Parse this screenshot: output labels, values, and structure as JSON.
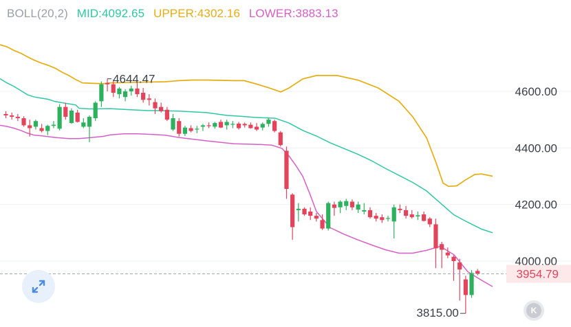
{
  "indicator": {
    "name": "BOLL(20,2)",
    "mid": "MID:4092.65",
    "upper": "UPPER:4302.16",
    "lower": "LOWER:3883.13"
  },
  "colors": {
    "name": "#9aa0a6",
    "mid": "#2dc8a3",
    "upper": "#e6ad12",
    "lower": "#d65fc6",
    "up": "#2db15e",
    "down": "#e2445c",
    "price_tag_bg": "#fde8ea",
    "price_tag_text": "#e2445c"
  },
  "expand_icon": "expand-arrows-icon",
  "k_button": {
    "label": "K"
  },
  "chart_data": {
    "type": "candlestick",
    "yticks": [
      "4600.00",
      "4400.00",
      "4200.00",
      "4000.00"
    ],
    "ylim": [
      3800,
      4780
    ],
    "last_price": "3954.79",
    "max_label": "4644.47",
    "min_label": "3815.00",
    "candles": [
      [
        4520,
        4530,
        4505,
        4515
      ],
      [
        4515,
        4525,
        4500,
        4510
      ],
      [
        4510,
        4520,
        4495,
        4505
      ],
      [
        4505,
        4512,
        4475,
        4480
      ],
      [
        4480,
        4500,
        4440,
        4470
      ],
      [
        4475,
        4500,
        4465,
        4495
      ],
      [
        4470,
        4485,
        4455,
        4460
      ],
      [
        4460,
        4482,
        4445,
        4478
      ],
      [
        4478,
        4495,
        4470,
        4482
      ],
      [
        4468,
        4555,
        4462,
        4545
      ],
      [
        4545,
        4560,
        4500,
        4510
      ],
      [
        4488,
        4540,
        4485,
        4532
      ],
      [
        4525,
        4535,
        4490,
        4492
      ],
      [
        4475,
        4505,
        4470,
        4490
      ],
      [
        4475,
        4515,
        4420,
        4510
      ],
      [
        4505,
        4565,
        4495,
        4560
      ],
      [
        4565,
        4635,
        4545,
        4625
      ],
      [
        4630,
        4644.47,
        4600,
        4625
      ],
      [
        4625,
        4640,
        4580,
        4595
      ],
      [
        4590,
        4615,
        4575,
        4610
      ],
      [
        4580,
        4608,
        4565,
        4600
      ],
      [
        4600,
        4620,
        4585,
        4610
      ],
      [
        4610,
        4630,
        4580,
        4590
      ],
      [
        4595,
        4612,
        4560,
        4570
      ],
      [
        4575,
        4590,
        4550,
        4570
      ],
      [
        4562,
        4575,
        4520,
        4540
      ],
      [
        4545,
        4560,
        4525,
        4530
      ],
      [
        4535,
        4545,
        4495,
        4500
      ],
      [
        4465,
        4520,
        4460,
        4505
      ],
      [
        4495,
        4505,
        4440,
        4450
      ],
      [
        4450,
        4478,
        4442,
        4472
      ],
      [
        4470,
        4480,
        4455,
        4460
      ],
      [
        4465,
        4478,
        4452,
        4468
      ],
      [
        4475,
        4485,
        4460,
        4480
      ],
      [
        4480,
        4490,
        4470,
        4478
      ],
      [
        4475,
        4492,
        4468,
        4488
      ],
      [
        4492,
        4500,
        4470,
        4472
      ],
      [
        4480,
        4500,
        4465,
        4492
      ],
      [
        4482,
        4495,
        4470,
        4485
      ],
      [
        4486,
        4492,
        4465,
        4470
      ],
      [
        4485,
        4490,
        4472,
        4480
      ],
      [
        4482,
        4490,
        4468,
        4470
      ],
      [
        4475,
        4488,
        4460,
        4465
      ],
      [
        4472,
        4490,
        4462,
        4485
      ],
      [
        4485,
        4505,
        4475,
        4500
      ],
      [
        4495,
        4500,
        4455,
        4460
      ],
      [
        4455,
        4460,
        4405,
        4410
      ],
      [
        4390,
        4405,
        4220,
        4255
      ],
      [
        4235,
        4240,
        4075,
        4120
      ],
      [
        4180,
        4205,
        4140,
        4185
      ],
      [
        4185,
        4190,
        4160,
        4165
      ],
      [
        4175,
        4190,
        4145,
        4160
      ],
      [
        4160,
        4170,
        4140,
        4150
      ],
      [
        4145,
        4165,
        4110,
        4115
      ],
      [
        4115,
        4210,
        4108,
        4205
      ],
      [
        4200,
        4210,
        4160,
        4188
      ],
      [
        4190,
        4215,
        4170,
        4210
      ],
      [
        4195,
        4220,
        4180,
        4212
      ],
      [
        4210,
        4218,
        4180,
        4190
      ],
      [
        4182,
        4210,
        4170,
        4200
      ],
      [
        4175,
        4205,
        4165,
        4180
      ],
      [
        4180,
        4190,
        4150,
        4155
      ],
      [
        4160,
        4170,
        4140,
        4150
      ],
      [
        4155,
        4165,
        4135,
        4145
      ],
      [
        4150,
        4160,
        4140,
        4152
      ],
      [
        4140,
        4200,
        4080,
        4190
      ],
      [
        4185,
        4200,
        4170,
        4180
      ],
      [
        4180,
        4195,
        4150,
        4160
      ],
      [
        4165,
        4180,
        4150,
        4155
      ],
      [
        4158,
        4175,
        4145,
        4162
      ],
      [
        4165,
        4175,
        4140,
        4142
      ],
      [
        4150,
        4155,
        4120,
        4130
      ],
      [
        4130,
        4150,
        3975,
        4045
      ],
      [
        4060,
        4068,
        3975,
        4040
      ],
      [
        4030,
        4048,
        4010,
        4020
      ],
      [
        4015,
        4020,
        3930,
        4000
      ],
      [
        3995,
        4008,
        3860,
        3970
      ],
      [
        3935,
        3948,
        3815,
        3880
      ],
      [
        3880,
        3968,
        3870,
        3958
      ],
      [
        3965,
        3972,
        3950,
        3955
      ]
    ],
    "mid": [
      [
        0,
        4645
      ],
      [
        10,
        4630
      ],
      [
        20,
        4618
      ],
      [
        30,
        4603
      ],
      [
        40,
        4588
      ],
      [
        50,
        4580
      ],
      [
        60,
        4576
      ],
      [
        70,
        4572
      ],
      [
        80,
        4564
      ],
      [
        100,
        4556
      ],
      [
        110,
        4552
      ],
      [
        115,
        4540
      ],
      [
        130,
        4538
      ],
      [
        140,
        4538
      ],
      [
        160,
        4539
      ],
      [
        180,
        4536
      ],
      [
        200,
        4534
      ],
      [
        215,
        4532
      ],
      [
        230,
        4532
      ],
      [
        260,
        4530
      ],
      [
        300,
        4525
      ],
      [
        330,
        4515
      ],
      [
        350,
        4512
      ],
      [
        370,
        4508
      ],
      [
        400,
        4505
      ],
      [
        420,
        4488
      ],
      [
        440,
        4462
      ],
      [
        460,
        4442
      ],
      [
        480,
        4418
      ],
      [
        500,
        4398
      ],
      [
        520,
        4378
      ],
      [
        540,
        4355
      ],
      [
        560,
        4328
      ],
      [
        580,
        4303
      ],
      [
        600,
        4278
      ],
      [
        620,
        4248
      ],
      [
        640,
        4205
      ],
      [
        660,
        4163
      ],
      [
        680,
        4137
      ],
      [
        700,
        4113
      ],
      [
        716,
        4100
      ]
    ],
    "upper": [
      [
        0,
        4765
      ],
      [
        10,
        4758
      ],
      [
        20,
        4745
      ],
      [
        30,
        4735
      ],
      [
        40,
        4722
      ],
      [
        50,
        4710
      ],
      [
        60,
        4700
      ],
      [
        70,
        4692
      ],
      [
        80,
        4682
      ],
      [
        90,
        4668
      ],
      [
        100,
        4656
      ],
      [
        110,
        4642
      ],
      [
        120,
        4630
      ],
      [
        140,
        4628
      ],
      [
        150,
        4627
      ],
      [
        160,
        4630
      ],
      [
        200,
        4632
      ],
      [
        240,
        4634
      ],
      [
        260,
        4638
      ],
      [
        280,
        4640
      ],
      [
        300,
        4640
      ],
      [
        340,
        4638
      ],
      [
        355,
        4638
      ],
      [
        370,
        4628
      ],
      [
        390,
        4613
      ],
      [
        408,
        4598
      ],
      [
        420,
        4612
      ],
      [
        440,
        4644
      ],
      [
        460,
        4656
      ],
      [
        490,
        4656
      ],
      [
        520,
        4640
      ],
      [
        550,
        4612
      ],
      [
        580,
        4565
      ],
      [
        600,
        4510
      ],
      [
        620,
        4436
      ],
      [
        634,
        4347
      ],
      [
        644,
        4276
      ],
      [
        652,
        4264
      ],
      [
        664,
        4266
      ],
      [
        676,
        4286
      ],
      [
        690,
        4306
      ],
      [
        700,
        4308
      ],
      [
        716,
        4300
      ]
    ],
    "lower": [
      [
        0,
        4480
      ],
      [
        10,
        4476
      ],
      [
        20,
        4470
      ],
      [
        30,
        4462
      ],
      [
        40,
        4452
      ],
      [
        50,
        4445
      ],
      [
        60,
        4443
      ],
      [
        70,
        4440
      ],
      [
        80,
        4437
      ],
      [
        100,
        4433
      ],
      [
        110,
        4433
      ],
      [
        115,
        4433
      ],
      [
        130,
        4436
      ],
      [
        150,
        4441
      ],
      [
        160,
        4446
      ],
      [
        180,
        4450
      ],
      [
        200,
        4450
      ],
      [
        220,
        4448
      ],
      [
        240,
        4445
      ],
      [
        260,
        4437
      ],
      [
        300,
        4425
      ],
      [
        340,
        4415
      ],
      [
        380,
        4412
      ],
      [
        395,
        4410
      ],
      [
        410,
        4398
      ],
      [
        420,
        4372
      ],
      [
        430,
        4338
      ],
      [
        440,
        4300
      ],
      [
        450,
        4240
      ],
      [
        460,
        4175
      ],
      [
        480,
        4118
      ],
      [
        500,
        4095
      ],
      [
        520,
        4075
      ],
      [
        540,
        4057
      ],
      [
        560,
        4040
      ],
      [
        580,
        4028
      ],
      [
        600,
        4028
      ],
      [
        620,
        4038
      ],
      [
        640,
        4052
      ],
      [
        660,
        4022
      ],
      [
        680,
        3962
      ],
      [
        700,
        3932
      ],
      [
        716,
        3910
      ]
    ]
  }
}
